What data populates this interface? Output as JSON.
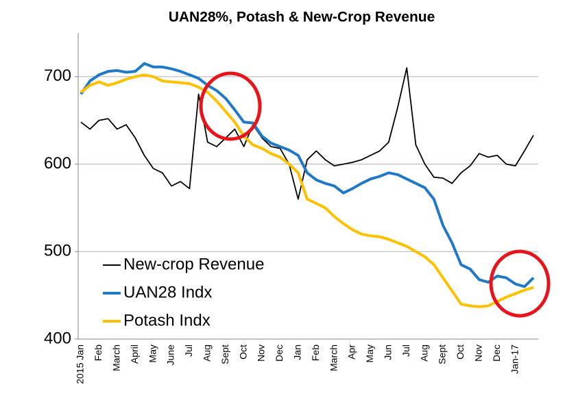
{
  "chart_data": {
    "type": "line",
    "title": "UAN28%, Potash & New-Crop Revenue",
    "categories": [
      "2015 Jan",
      null,
      "Feb",
      null,
      "March",
      null,
      "April",
      null,
      "May",
      null,
      "June",
      null,
      "Jul",
      null,
      "Aug",
      null,
      "Sept",
      null,
      "Oct",
      null,
      "Nov",
      null,
      "Dec",
      null,
      "Jan",
      null,
      "Feb",
      null,
      "March",
      null,
      "Apr",
      null,
      "May",
      null,
      "Jun",
      null,
      "Jul",
      null,
      "Aug",
      null,
      "Sept",
      null,
      "Oct",
      null,
      "Nov",
      null,
      "Dec",
      null,
      "Jan-17",
      null,
      null
    ],
    "series": [
      {
        "name": "New-crop Revenue",
        "color": "#000000",
        "values": [
          648,
          640,
          650,
          652,
          640,
          645,
          630,
          610,
          595,
          590,
          575,
          580,
          572,
          680,
          625,
          620,
          630,
          640,
          620,
          645,
          630,
          620,
          618,
          600,
          560,
          605,
          615,
          605,
          598,
          600,
          602,
          605,
          610,
          615,
          625,
          665,
          710,
          622,
          600,
          585,
          584,
          578,
          590,
          598,
          612,
          608,
          610,
          600,
          598,
          615,
          633
        ]
      },
      {
        "name": "UAN28 Indx",
        "color": "#1f78c8",
        "values": [
          680,
          695,
          702,
          706,
          707,
          705,
          706,
          715,
          711,
          711,
          709,
          706,
          702,
          698,
          690,
          684,
          675,
          662,
          648,
          647,
          632,
          624,
          620,
          616,
          610,
          590,
          582,
          578,
          575,
          567,
          572,
          578,
          583,
          586,
          590,
          588,
          583,
          578,
          573,
          560,
          530,
          510,
          485,
          480,
          468,
          465,
          472,
          470,
          463,
          460,
          470
        ]
      },
      {
        "name": "Potash Indx",
        "color": "#ffc000",
        "values": [
          682,
          690,
          694,
          690,
          693,
          697,
          700,
          702,
          700,
          695,
          694,
          693,
          692,
          688,
          682,
          672,
          660,
          648,
          632,
          622,
          618,
          612,
          608,
          600,
          590,
          560,
          555,
          550,
          540,
          532,
          525,
          520,
          518,
          517,
          514,
          510,
          506,
          500,
          494,
          485,
          470,
          455,
          440,
          438,
          437,
          438,
          443,
          448,
          452,
          456,
          459
        ]
      }
    ],
    "ylim": [
      400,
      750
    ],
    "yticks": [
      400,
      500,
      600,
      700
    ],
    "grid": true,
    "legend": "lower-left"
  }
}
